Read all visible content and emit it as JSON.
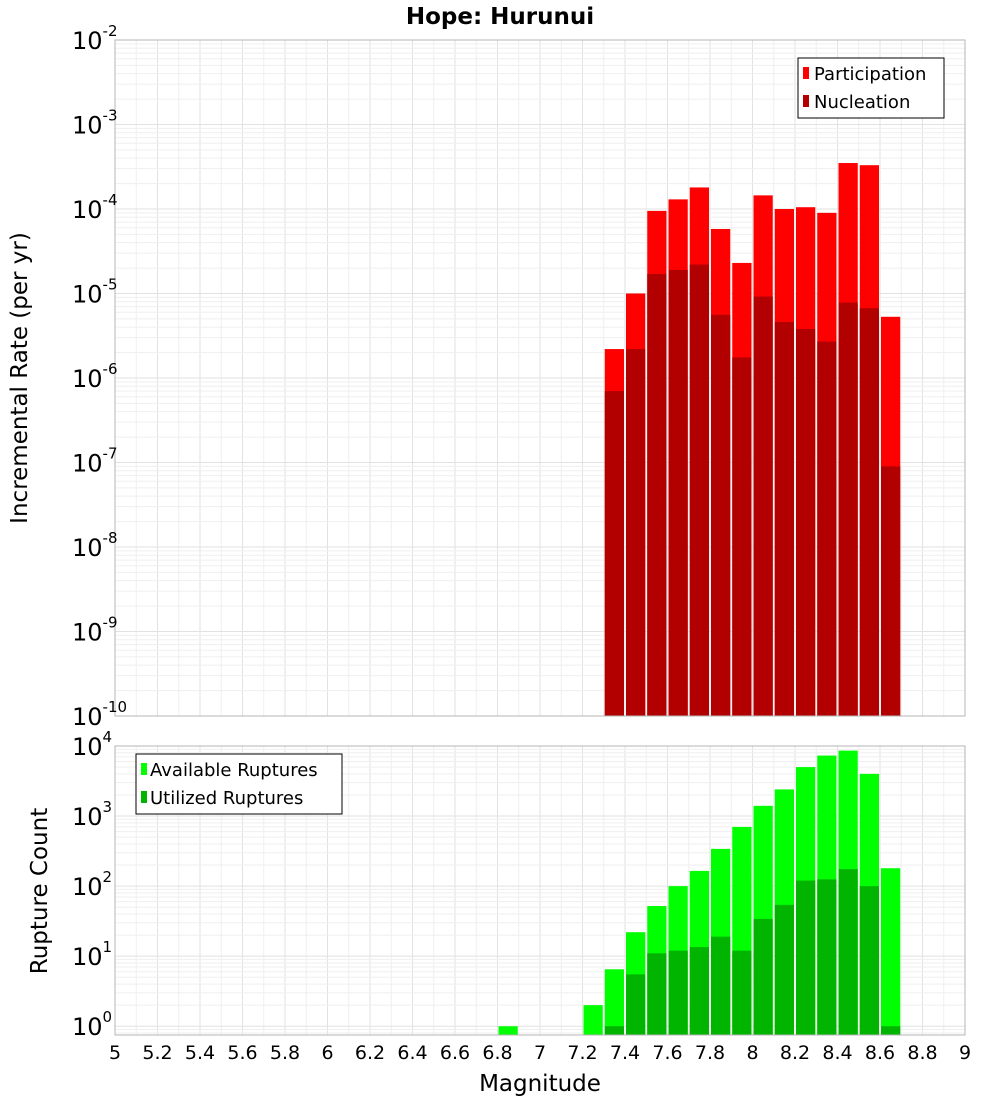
{
  "title": "Hope: Hurunui",
  "chart_data": [
    {
      "type": "bar",
      "id": "rate",
      "ylabel": "Incremental Rate (per yr)",
      "xlabel": "",
      "yscale": "log",
      "ylim": [
        1e-10,
        0.01
      ],
      "xlim": [
        5,
        9
      ],
      "y_ticks": [
        {
          "base": "10",
          "exp": "-10",
          "value": 1e-10
        },
        {
          "base": "10",
          "exp": "-9",
          "value": 1e-09
        },
        {
          "base": "10",
          "exp": "-8",
          "value": 1e-08
        },
        {
          "base": "10",
          "exp": "-7",
          "value": 1e-07
        },
        {
          "base": "10",
          "exp": "-6",
          "value": 1e-06
        },
        {
          "base": "10",
          "exp": "-5",
          "value": 1e-05
        },
        {
          "base": "10",
          "exp": "-4",
          "value": 0.0001
        },
        {
          "base": "10",
          "exp": "-3",
          "value": 0.001
        },
        {
          "base": "10",
          "exp": "-2",
          "value": 0.01
        }
      ],
      "legend": {
        "placement": "top-right"
      },
      "series": [
        {
          "name": "Participation",
          "color": "#ff0000",
          "x": [
            7.35,
            7.45,
            7.55,
            7.65,
            7.75,
            7.85,
            7.95,
            8.05,
            8.15,
            8.25,
            8.35,
            8.45,
            8.55,
            8.65
          ],
          "values": [
            2.2e-06,
            1e-05,
            9.5e-05,
            0.00013,
            0.00018,
            5.8e-05,
            2.3e-05,
            0.000145,
            0.0001,
            0.000105,
            9e-05,
            0.00035,
            0.00033,
            5.3e-06
          ]
        },
        {
          "name": "Nucleation",
          "color": "#b20000",
          "x": [
            7.35,
            7.45,
            7.55,
            7.65,
            7.75,
            7.85,
            7.95,
            8.05,
            8.15,
            8.25,
            8.35,
            8.45,
            8.55,
            8.65
          ],
          "values": [
            7e-07,
            2.2e-06,
            1.7e-05,
            1.9e-05,
            2.2e-05,
            5.6e-06,
            1.75e-06,
            9.2e-06,
            4.6e-06,
            3.8e-06,
            2.7e-06,
            7.8e-06,
            6.7e-06,
            9e-08
          ]
        }
      ]
    },
    {
      "type": "bar",
      "id": "count",
      "ylabel": "Rupture Count",
      "xlabel": "Magnitude",
      "yscale": "log",
      "ylim": [
        0.75,
        10000
      ],
      "xlim": [
        5,
        9
      ],
      "x_ticks": [
        "5",
        "5.2",
        "5.4",
        "5.6",
        "5.8",
        "6",
        "6.2",
        "6.4",
        "6.6",
        "6.8",
        "7",
        "7.2",
        "7.4",
        "7.6",
        "7.8",
        "8",
        "8.2",
        "8.4",
        "8.6",
        "8.8",
        "9"
      ],
      "y_ticks": [
        {
          "base": "10",
          "exp": "0",
          "value": 1
        },
        {
          "base": "10",
          "exp": "1",
          "value": 10
        },
        {
          "base": "10",
          "exp": "2",
          "value": 100
        },
        {
          "base": "10",
          "exp": "3",
          "value": 1000
        },
        {
          "base": "10",
          "exp": "4",
          "value": 10000
        }
      ],
      "legend": {
        "placement": "top-left"
      },
      "series": [
        {
          "name": "Available Ruptures",
          "color": "#00ff00",
          "x": [
            6.85,
            7.25,
            7.35,
            7.45,
            7.55,
            7.65,
            7.75,
            7.85,
            7.95,
            8.05,
            8.15,
            8.25,
            8.35,
            8.45,
            8.55,
            8.65
          ],
          "values": [
            1,
            2,
            6.5,
            22,
            52,
            100,
            165,
            340,
            700,
            1400,
            2400,
            5000,
            7300,
            8600,
            4000,
            180
          ]
        },
        {
          "name": "Utilized Ruptures",
          "color": "#00b400",
          "x": [
            7.35,
            7.45,
            7.55,
            7.65,
            7.75,
            7.85,
            7.95,
            8.05,
            8.15,
            8.25,
            8.35,
            8.45,
            8.55,
            8.65
          ],
          "values": [
            1,
            5.5,
            11,
            12,
            13.5,
            19,
            12,
            34,
            54,
            120,
            125,
            175,
            100,
            1
          ]
        }
      ]
    }
  ]
}
